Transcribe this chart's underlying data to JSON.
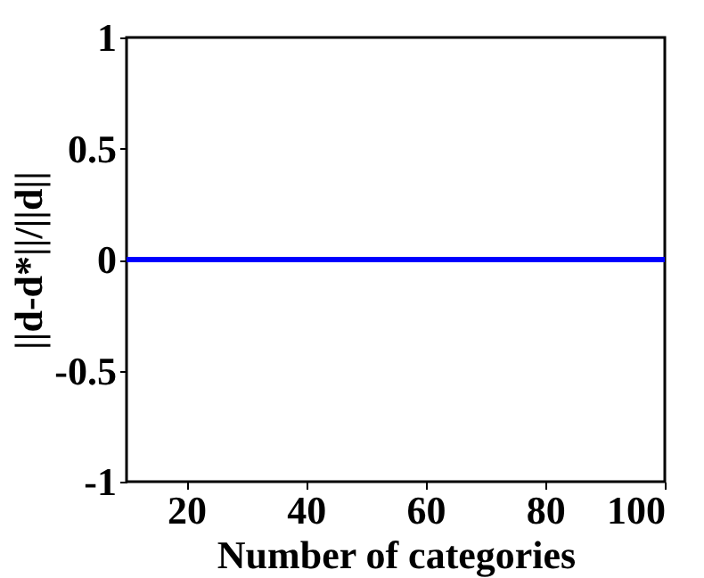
{
  "chart_data": {
    "type": "line",
    "xlabel": "Number of categories",
    "ylabel": "||d-d*||/||d||",
    "x": [
      10,
      100
    ],
    "series": [
      {
        "color": "#0000ff",
        "values": [
          0,
          0
        ]
      }
    ],
    "xlim": [
      10,
      100
    ],
    "xticks": [
      20,
      40,
      60,
      80,
      100
    ],
    "ylim": [
      -1,
      1
    ],
    "yticks": [
      -1,
      -0.5,
      0,
      0.5,
      1
    ],
    "grid": false,
    "legend": false,
    "marker": "none",
    "line_style": "solid"
  }
}
